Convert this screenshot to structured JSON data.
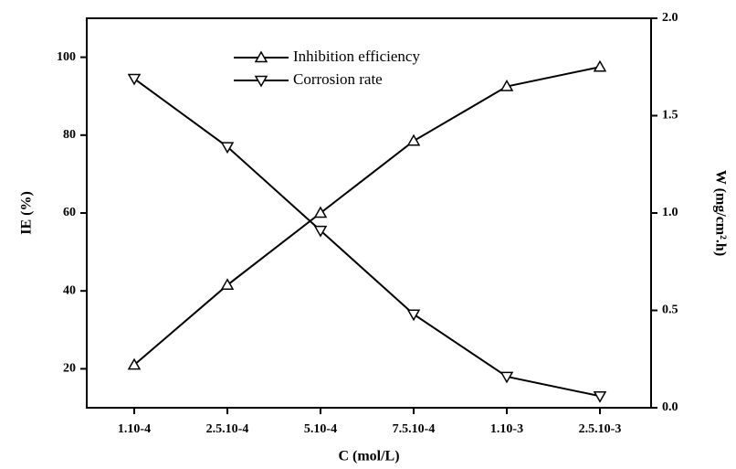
{
  "chart_data": {
    "type": "line",
    "x_label": "C (mol/L)",
    "y_label": "IE (%)",
    "y2_label": "W (mg/cm².h)",
    "categories": [
      "1.10-4",
      "2.5.10-4",
      "5.10-4",
      "7.5.10-4",
      "1.10-3",
      "2.5.10-3"
    ],
    "series": [
      {
        "name": "Inhibition efficiency",
        "color": "#000000",
        "marker": "triangle-up",
        "values": [
          21,
          41.5,
          60,
          78.5,
          92.5,
          97.5
        ]
      },
      {
        "name": "Corrosion rate",
        "color": "#000000",
        "marker": "triangle-down",
        "axis": "y2",
        "values": [
          1.69,
          1.34,
          0.91,
          0.48,
          0.16,
          0.06
        ]
      }
    ],
    "ylim": [
      10,
      110
    ],
    "yticks": [
      20,
      40,
      60,
      80,
      100
    ],
    "y2lim": [
      0,
      2
    ],
    "y2ticks": [
      {
        "value": 0,
        "label": "0.0"
      },
      0.5,
      {
        "value": 1,
        "label": "1.0"
      },
      1.5,
      {
        "value": 2,
        "label": "2.0"
      }
    ],
    "grid": false,
    "legend": "top"
  }
}
